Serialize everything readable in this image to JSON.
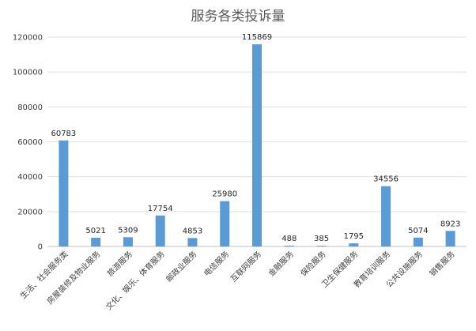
{
  "chart_data": {
    "type": "bar",
    "title": "服务各类投诉量",
    "categories": [
      "生活、社会服务类",
      "房屋装修及物业服务",
      "旅游服务",
      "文化、娱乐、体育服务",
      "邮政业服务",
      "电信服务",
      "互联网服务",
      "金融服务",
      "保险服务",
      "卫生保健服务",
      "教育培训服务",
      "公共设施服务",
      "销售服务"
    ],
    "values": [
      60783,
      5021,
      5309,
      17754,
      4853,
      25980,
      115869,
      488,
      385,
      1795,
      34556,
      5074,
      8923
    ],
    "data_labels": [
      "60783",
      "5021",
      "5309",
      "17754",
      "4853",
      "25980",
      "115869",
      "488",
      "385",
      "1795",
      "34556",
      "5074",
      "8923"
    ],
    "ylim": [
      0,
      120000
    ],
    "yticks": [
      0,
      20000,
      40000,
      60000,
      80000,
      100000,
      120000
    ],
    "ytick_labels": [
      "0",
      "20000",
      "40000",
      "60000",
      "80000",
      "100000",
      "120000"
    ],
    "xlabel": "",
    "ylabel": "",
    "grid": true,
    "legend": "none",
    "colors": {
      "bar": "#5B9BD5",
      "grid": "#e0e0e0",
      "axis": "#bfbfbf",
      "title": "#595959"
    }
  }
}
